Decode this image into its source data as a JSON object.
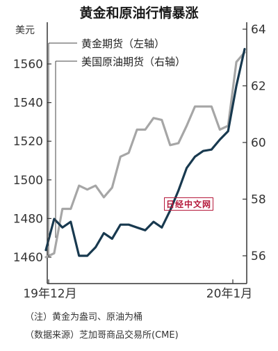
{
  "title": "黄金和原油行情暴涨",
  "left_axis_unit": "美元",
  "logo": "日经中文网",
  "notes": {
    "line1": "（注）黄金为盎司、原油为桶",
    "line2": "（数据来源）芝加哥商品交易所(CME)"
  },
  "colors": {
    "gold": "#a6a6a6",
    "oil": "#18394f",
    "axis": "#333333"
  },
  "chart_data": {
    "type": "line",
    "title": "黄金和原油行情暴涨",
    "x_tick_labels": [
      "19年12月",
      "20年1月"
    ],
    "left_axis": {
      "unit": "美元",
      "ylim": [
        1450,
        1580
      ],
      "ticks": [
        1460,
        1480,
        1500,
        1520,
        1540,
        1560
      ]
    },
    "right_axis": {
      "ylim": [
        55.5,
        64
      ],
      "ticks": [
        56,
        58,
        60,
        62,
        64
      ]
    },
    "legend_position": "top-left",
    "series": [
      {
        "name": "黄金期货（左轴）",
        "axis": "left",
        "color": "#a6a6a6",
        "values": [
          1460,
          1462,
          1485,
          1485,
          1497,
          1495,
          1497,
          1491,
          1496,
          1512,
          1514,
          1526,
          1526,
          1532,
          1531,
          1518,
          1519,
          1528,
          1538,
          1538,
          1538,
          1526,
          1528,
          1561,
          1566
        ]
      },
      {
        "name": "美国原油期货（右轴）",
        "axis": "right",
        "color": "#18394f",
        "values": [
          56.2,
          57.3,
          57.0,
          57.2,
          56.0,
          56.0,
          56.3,
          56.8,
          56.6,
          57.1,
          57.1,
          57.0,
          56.9,
          57.2,
          57.0,
          57.6,
          58.3,
          59.1,
          59.5,
          59.7,
          59.75,
          60.1,
          60.4,
          62.0,
          63.3
        ]
      }
    ]
  }
}
